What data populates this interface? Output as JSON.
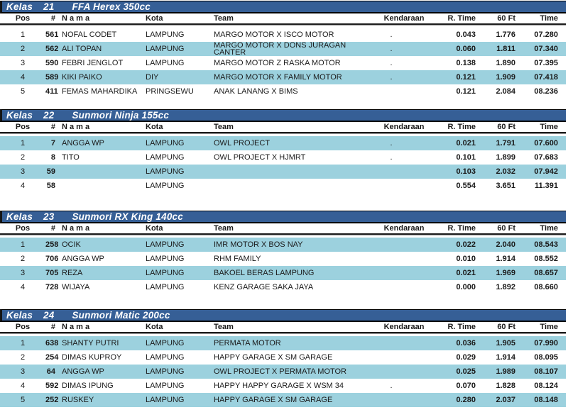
{
  "colors": {
    "header_bar": "#365F96",
    "row_shade": "#9CD1DE",
    "title_text": "#ffffff",
    "body_text": "#1a1a1a"
  },
  "columns": {
    "pos": "Pos",
    "num": "#",
    "nama": "N a m a",
    "kota": "Kota",
    "team": "Team",
    "kendaraan": "Kendaraan",
    "rtime": "R. Time",
    "sixtyft": "60 Ft",
    "time": "Time"
  },
  "tables": [
    {
      "kelas_label": "Kelas",
      "class_number": "21",
      "class_name": "FFA Herex 350cc",
      "first_row_shaded": false,
      "rows": [
        {
          "pos": "1",
          "num": "561",
          "nama": "NOFAL CODET",
          "kota": "LAMPUNG",
          "team": "MARGO MOTOR X ISCO MOTOR",
          "kendaraan": ".",
          "rtime": "0.043",
          "sixtyft": "1.776",
          "time": "07.280"
        },
        {
          "pos": "2",
          "num": "562",
          "nama": "ALI TOPAN",
          "kota": "LAMPUNG",
          "team": "MARGO MOTOR X DONS JURAGAN\nCANTER",
          "kendaraan": ".",
          "rtime": "0.060",
          "sixtyft": "1.811",
          "time": "07.340"
        },
        {
          "pos": "3",
          "num": "590",
          "nama": "FEBRI JENGLOT",
          "kota": "LAMPUNG",
          "team": "MARGO MOTOR Z RASKA MOTOR",
          "kendaraan": ".",
          "rtime": "0.138",
          "sixtyft": "1.890",
          "time": "07.395"
        },
        {
          "pos": "4",
          "num": "589",
          "nama": "KIKI PAIKO",
          "kota": "DIY",
          "team": "MARGO MOTOR X FAMILY MOTOR",
          "kendaraan": ".",
          "rtime": "0.121",
          "sixtyft": "1.909",
          "time": "07.418"
        },
        {
          "pos": "5",
          "num": "411",
          "nama": "FEMAS MAHARDIKA",
          "kota": "PRINGSEWU",
          "team": "ANAK LANANG X BIMS",
          "kendaraan": "",
          "rtime": "0.121",
          "sixtyft": "2.084",
          "time": "08.236"
        }
      ]
    },
    {
      "kelas_label": "Kelas",
      "class_number": "22",
      "class_name": "Sunmori Ninja 155cc",
      "first_row_shaded": true,
      "rows": [
        {
          "pos": "1",
          "num": "7",
          "nama": "ANGGA WP",
          "kota": "LAMPUNG",
          "team": "OWL PROJECT",
          "kendaraan": ".",
          "rtime": "0.021",
          "sixtyft": "1.791",
          "time": "07.600"
        },
        {
          "pos": "2",
          "num": "8",
          "nama": "TITO",
          "kota": "LAMPUNG",
          "team": "OWL PROJECT X HJMRT",
          "kendaraan": ".",
          "rtime": "0.101",
          "sixtyft": "1.899",
          "time": "07.683"
        },
        {
          "pos": "3",
          "num": "59",
          "nama": "",
          "kota": "LAMPUNG",
          "team": "",
          "kendaraan": "",
          "rtime": "0.103",
          "sixtyft": "2.032",
          "time": "07.942"
        },
        {
          "pos": "4",
          "num": "58",
          "nama": "",
          "kota": "LAMPUNG",
          "team": "",
          "kendaraan": "",
          "rtime": "0.554",
          "sixtyft": "3.651",
          "time": "11.391"
        }
      ]
    },
    {
      "kelas_label": "Kelas",
      "class_number": "23",
      "class_name": "Sunmori RX King 140cc",
      "first_row_shaded": true,
      "rows": [
        {
          "pos": "1",
          "num": "258",
          "nama": "OCIK",
          "kota": "LAMPUNG",
          "team": "IMR MOTOR X BOS NAY",
          "kendaraan": "",
          "rtime": "0.022",
          "sixtyft": "2.040",
          "time": "08.543"
        },
        {
          "pos": "2",
          "num": "706",
          "nama": "ANGGA WP",
          "kota": "LAMPUNG",
          "team": "RHM FAMILY",
          "kendaraan": "",
          "rtime": "0.010",
          "sixtyft": "1.914",
          "time": "08.552"
        },
        {
          "pos": "3",
          "num": "705",
          "nama": "REZA",
          "kota": "LAMPUNG",
          "team": "BAKOEL BERAS LAMPUNG",
          "kendaraan": "",
          "rtime": "0.021",
          "sixtyft": "1.969",
          "time": "08.657"
        },
        {
          "pos": "4",
          "num": "728",
          "nama": "WIJAYA",
          "kota": "LAMPUNG",
          "team": "KENZ GARAGE SAKA JAYA",
          "kendaraan": "",
          "rtime": "0.000",
          "sixtyft": "1.892",
          "time": "08.660"
        }
      ]
    },
    {
      "kelas_label": "Kelas",
      "class_number": "24",
      "class_name": "Sunmori Matic 200cc",
      "first_row_shaded": true,
      "rows": [
        {
          "pos": "1",
          "num": "638",
          "nama": "SHANTY PUTRI",
          "kota": "LAMPUNG",
          "team": "PERMATA MOTOR",
          "kendaraan": "",
          "rtime": "0.036",
          "sixtyft": "1.905",
          "time": "07.990"
        },
        {
          "pos": "2",
          "num": "254",
          "nama": "DIMAS KUPROY",
          "kota": "LAMPUNG",
          "team": "HAPPY GARAGE X SM GARAGE",
          "kendaraan": "",
          "rtime": "0.029",
          "sixtyft": "1.914",
          "time": "08.095"
        },
        {
          "pos": "3",
          "num": "64",
          "nama": "ANGGA WP",
          "kota": "LAMPUNG",
          "team": "OWL PROJECT X PERMATA MOTOR",
          "kendaraan": "",
          "rtime": "0.025",
          "sixtyft": "1.989",
          "time": "08.107"
        },
        {
          "pos": "4",
          "num": "592",
          "nama": "DIMAS IPUNG",
          "kota": "LAMPUNG",
          "team": "HAPPY HAPPY GARAGE X WSM 34",
          "kendaraan": ".",
          "rtime": "0.070",
          "sixtyft": "1.828",
          "time": "08.124"
        },
        {
          "pos": "5",
          "num": "252",
          "nama": "RUSKEY",
          "kota": "LAMPUNG",
          "team": "HAPPY GARAGE X SM GARAGE",
          "kendaraan": "",
          "rtime": "0.280",
          "sixtyft": "2.037",
          "time": "08.148"
        }
      ]
    }
  ]
}
